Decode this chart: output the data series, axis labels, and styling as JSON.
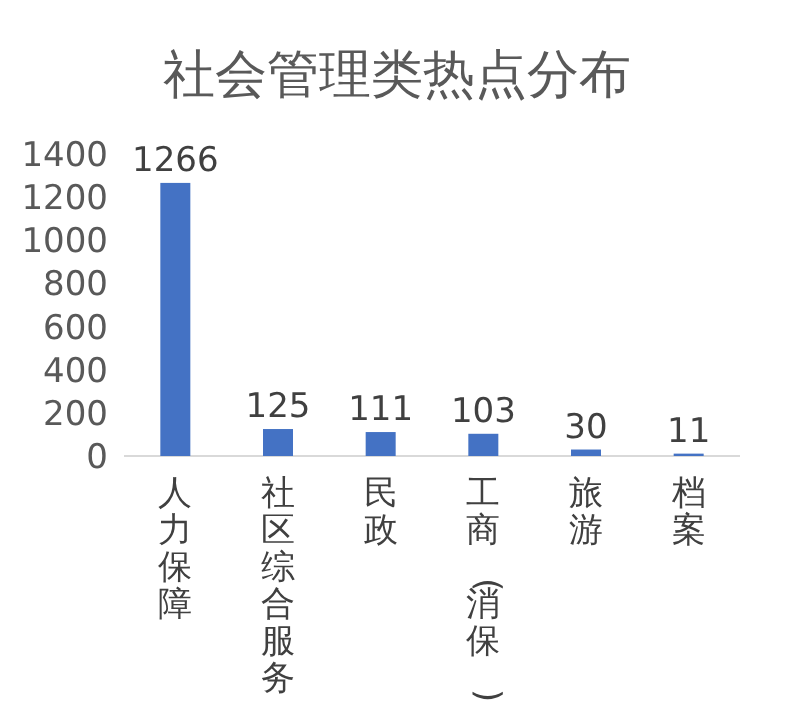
{
  "chart_data": {
    "type": "bar",
    "title": "社会管理类热点分布",
    "categories": [
      "人力保障",
      "社区综合服务",
      "民政",
      "工商(消保)",
      "旅游",
      "档案"
    ],
    "values": [
      1266,
      125,
      111,
      103,
      30,
      11
    ],
    "color": "#4472c4",
    "ylim": [
      0,
      1400
    ],
    "yticks": [
      0,
      200,
      400,
      600,
      800,
      1000,
      1200,
      1400
    ],
    "grid": false,
    "data_labels": true
  }
}
